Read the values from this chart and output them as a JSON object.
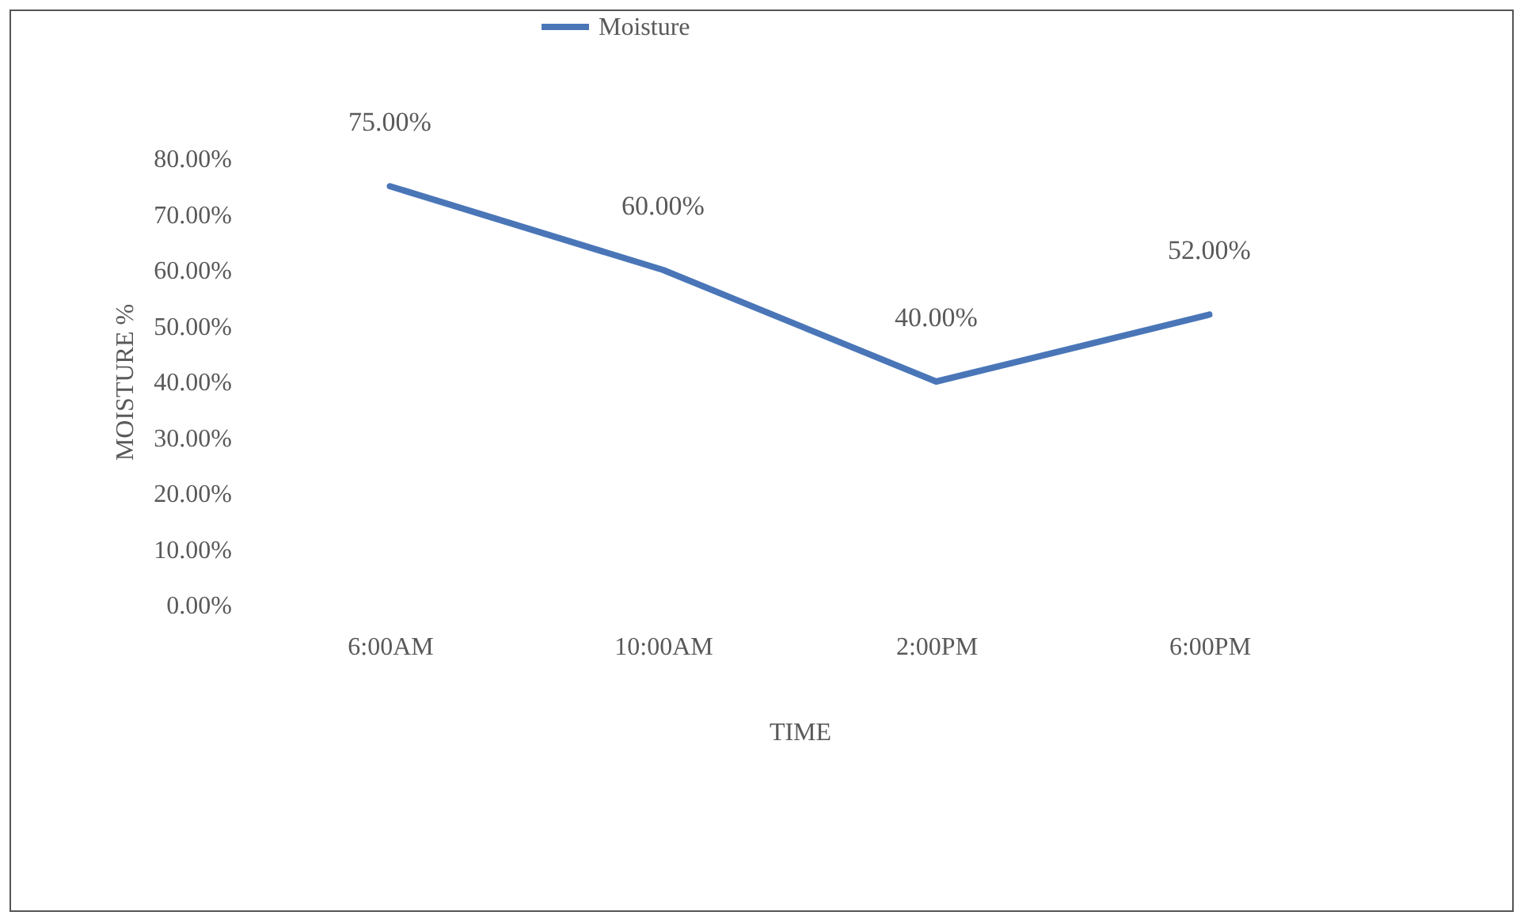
{
  "chart_data": {
    "type": "line",
    "xlabel": "TIME",
    "ylabel": "MOISTURE %",
    "categories": [
      "6:00AM",
      "10:00AM",
      "2:00PM",
      "6:00PM"
    ],
    "series": [
      {
        "name": "Moisture",
        "color": "#4a76b8",
        "values": [
          75,
          60,
          40,
          52
        ],
        "value_labels": [
          "75.00%",
          "60.00%",
          "40.00%",
          "52.00%"
        ]
      }
    ],
    "ylim": [
      0,
      80
    ],
    "yticks": [
      {
        "value": 0,
        "label": "0.00%"
      },
      {
        "value": 10,
        "label": "10.00%"
      },
      {
        "value": 20,
        "label": "20.00%"
      },
      {
        "value": 30,
        "label": "30.00%"
      },
      {
        "value": 40,
        "label": "40.00%"
      },
      {
        "value": 50,
        "label": "50.00%"
      },
      {
        "value": 60,
        "label": "60.00%"
      },
      {
        "value": 70,
        "label": "70.00%"
      },
      {
        "value": 80,
        "label": "80.00%"
      }
    ],
    "legend": "top",
    "grid": false,
    "marker": "none",
    "line_style": "solid"
  }
}
